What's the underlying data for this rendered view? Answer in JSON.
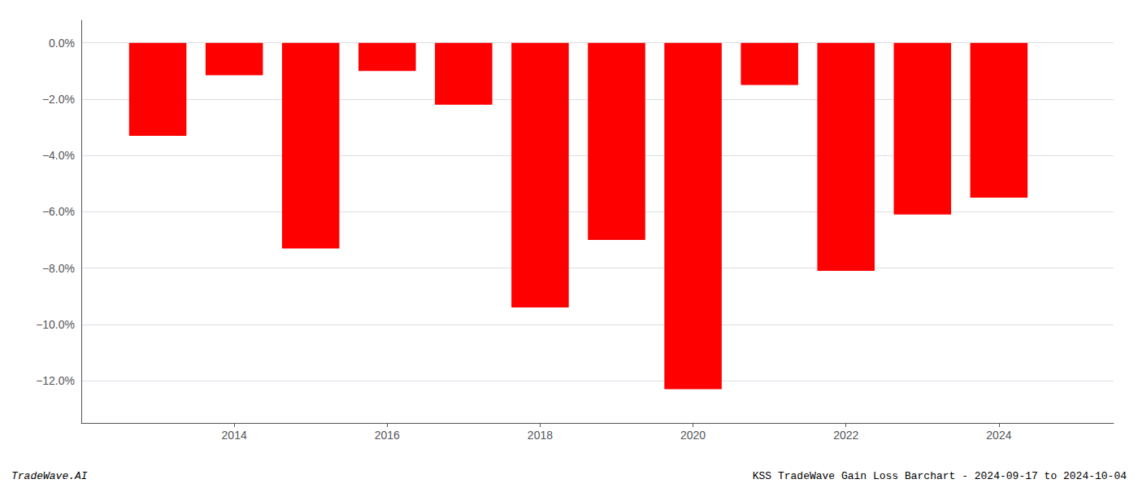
{
  "chart_data": {
    "type": "bar",
    "x": [
      2013,
      2014,
      2015,
      2016,
      2017,
      2018,
      2019,
      2020,
      2021,
      2022,
      2023,
      2024
    ],
    "values": [
      -3.3,
      -1.15,
      -7.3,
      -1.0,
      -2.2,
      -9.4,
      -7.0,
      -12.3,
      -1.5,
      -8.1,
      -6.1,
      -5.5
    ],
    "color": "#ff0000",
    "xlim": [
      2012.0,
      2025.5
    ],
    "xticks": [
      2014,
      2016,
      2018,
      2020,
      2022,
      2024
    ],
    "ylim": [
      -13.5,
      0.8
    ],
    "yticks": [
      {
        "value": 0.0,
        "label": "0.0%"
      },
      {
        "value": -2.0,
        "label": "−2.0%"
      },
      {
        "value": -4.0,
        "label": "−4.0%"
      },
      {
        "value": -6.0,
        "label": "−6.0%"
      },
      {
        "value": -8.0,
        "label": "−8.0%"
      },
      {
        "value": -10.0,
        "label": "−10.0%"
      },
      {
        "value": -12.0,
        "label": "−12.0%"
      }
    ],
    "grid": true,
    "annotations": [
      "TradeWave.AI",
      "KSS TradeWave Gain Loss Barchart - 2024-09-17 to 2024-10-04"
    ]
  }
}
